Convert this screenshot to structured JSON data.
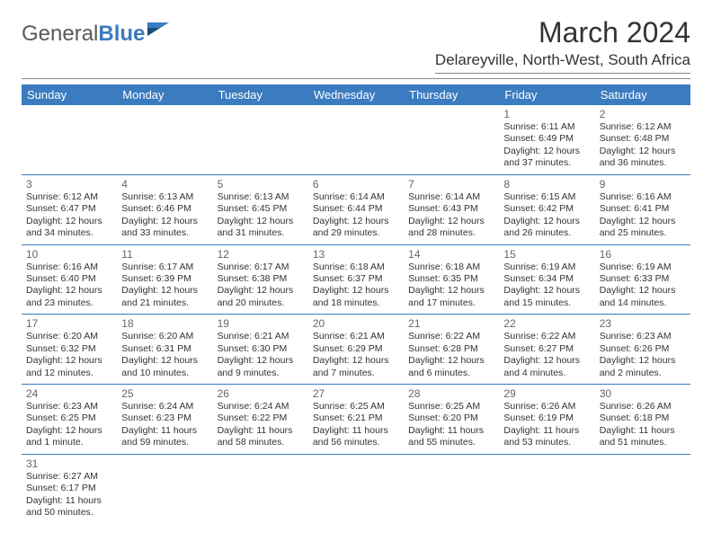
{
  "logo": {
    "text1": "General",
    "text2": "Blue"
  },
  "title": "March 2024",
  "location": "Delareyville, North-West, South Africa",
  "colors": {
    "header_bg": "#3b7bbf",
    "header_text": "#ffffff",
    "rule": "#888888",
    "text": "#333333",
    "logo_gray": "#5a5a5a",
    "logo_blue": "#3b7bbf"
  },
  "day_names": [
    "Sunday",
    "Monday",
    "Tuesday",
    "Wednesday",
    "Thursday",
    "Friday",
    "Saturday"
  ],
  "weeks": [
    [
      null,
      null,
      null,
      null,
      null,
      {
        "n": "1",
        "sr": "6:11 AM",
        "ss": "6:49 PM",
        "dl": "12 hours and 37 minutes."
      },
      {
        "n": "2",
        "sr": "6:12 AM",
        "ss": "6:48 PM",
        "dl": "12 hours and 36 minutes."
      }
    ],
    [
      {
        "n": "3",
        "sr": "6:12 AM",
        "ss": "6:47 PM",
        "dl": "12 hours and 34 minutes."
      },
      {
        "n": "4",
        "sr": "6:13 AM",
        "ss": "6:46 PM",
        "dl": "12 hours and 33 minutes."
      },
      {
        "n": "5",
        "sr": "6:13 AM",
        "ss": "6:45 PM",
        "dl": "12 hours and 31 minutes."
      },
      {
        "n": "6",
        "sr": "6:14 AM",
        "ss": "6:44 PM",
        "dl": "12 hours and 29 minutes."
      },
      {
        "n": "7",
        "sr": "6:14 AM",
        "ss": "6:43 PM",
        "dl": "12 hours and 28 minutes."
      },
      {
        "n": "8",
        "sr": "6:15 AM",
        "ss": "6:42 PM",
        "dl": "12 hours and 26 minutes."
      },
      {
        "n": "9",
        "sr": "6:16 AM",
        "ss": "6:41 PM",
        "dl": "12 hours and 25 minutes."
      }
    ],
    [
      {
        "n": "10",
        "sr": "6:16 AM",
        "ss": "6:40 PM",
        "dl": "12 hours and 23 minutes."
      },
      {
        "n": "11",
        "sr": "6:17 AM",
        "ss": "6:39 PM",
        "dl": "12 hours and 21 minutes."
      },
      {
        "n": "12",
        "sr": "6:17 AM",
        "ss": "6:38 PM",
        "dl": "12 hours and 20 minutes."
      },
      {
        "n": "13",
        "sr": "6:18 AM",
        "ss": "6:37 PM",
        "dl": "12 hours and 18 minutes."
      },
      {
        "n": "14",
        "sr": "6:18 AM",
        "ss": "6:35 PM",
        "dl": "12 hours and 17 minutes."
      },
      {
        "n": "15",
        "sr": "6:19 AM",
        "ss": "6:34 PM",
        "dl": "12 hours and 15 minutes."
      },
      {
        "n": "16",
        "sr": "6:19 AM",
        "ss": "6:33 PM",
        "dl": "12 hours and 14 minutes."
      }
    ],
    [
      {
        "n": "17",
        "sr": "6:20 AM",
        "ss": "6:32 PM",
        "dl": "12 hours and 12 minutes."
      },
      {
        "n": "18",
        "sr": "6:20 AM",
        "ss": "6:31 PM",
        "dl": "12 hours and 10 minutes."
      },
      {
        "n": "19",
        "sr": "6:21 AM",
        "ss": "6:30 PM",
        "dl": "12 hours and 9 minutes."
      },
      {
        "n": "20",
        "sr": "6:21 AM",
        "ss": "6:29 PM",
        "dl": "12 hours and 7 minutes."
      },
      {
        "n": "21",
        "sr": "6:22 AM",
        "ss": "6:28 PM",
        "dl": "12 hours and 6 minutes."
      },
      {
        "n": "22",
        "sr": "6:22 AM",
        "ss": "6:27 PM",
        "dl": "12 hours and 4 minutes."
      },
      {
        "n": "23",
        "sr": "6:23 AM",
        "ss": "6:26 PM",
        "dl": "12 hours and 2 minutes."
      }
    ],
    [
      {
        "n": "24",
        "sr": "6:23 AM",
        "ss": "6:25 PM",
        "dl": "12 hours and 1 minute."
      },
      {
        "n": "25",
        "sr": "6:24 AM",
        "ss": "6:23 PM",
        "dl": "11 hours and 59 minutes."
      },
      {
        "n": "26",
        "sr": "6:24 AM",
        "ss": "6:22 PM",
        "dl": "11 hours and 58 minutes."
      },
      {
        "n": "27",
        "sr": "6:25 AM",
        "ss": "6:21 PM",
        "dl": "11 hours and 56 minutes."
      },
      {
        "n": "28",
        "sr": "6:25 AM",
        "ss": "6:20 PM",
        "dl": "11 hours and 55 minutes."
      },
      {
        "n": "29",
        "sr": "6:26 AM",
        "ss": "6:19 PM",
        "dl": "11 hours and 53 minutes."
      },
      {
        "n": "30",
        "sr": "6:26 AM",
        "ss": "6:18 PM",
        "dl": "11 hours and 51 minutes."
      }
    ],
    [
      {
        "n": "31",
        "sr": "6:27 AM",
        "ss": "6:17 PM",
        "dl": "11 hours and 50 minutes."
      },
      null,
      null,
      null,
      null,
      null,
      null
    ]
  ],
  "labels": {
    "sunrise": "Sunrise:",
    "sunset": "Sunset:",
    "daylight": "Daylight:"
  }
}
